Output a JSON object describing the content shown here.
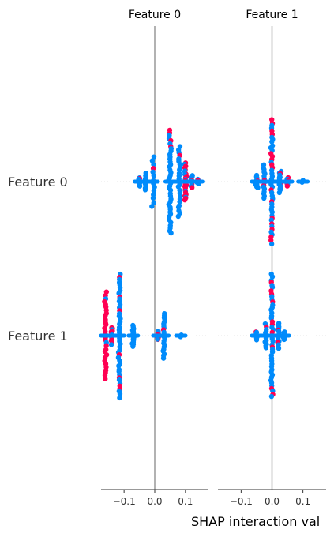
{
  "chart_data": {
    "type": "scatter",
    "title": "",
    "xlabel": "SHAP interaction val",
    "ylabel": "",
    "panels": [
      {
        "title": "Feature 0",
        "xlim": [
          -0.175,
          0.175
        ],
        "ticks": [
          -0.1,
          0.0,
          0.1
        ],
        "tick_labels": [
          "−0.1",
          "0.0",
          "0.1"
        ],
        "rows": [
          {
            "feature": "Feature 0",
            "clusters": [
              {
                "x": -0.03,
                "spread": 0.04,
                "n": 10,
                "low": 0.95
              },
              {
                "x": -0.005,
                "spread": 0.12,
                "n": 14,
                "low": 0.95
              },
              {
                "x": 0.05,
                "spread": 0.25,
                "n": 40,
                "low": 0.95
              },
              {
                "x": 0.08,
                "spread": 0.17,
                "n": 25,
                "low": 0.9
              },
              {
                "x": 0.1,
                "spread": 0.09,
                "n": 26,
                "low": 0.45
              },
              {
                "x": 0.14,
                "spread": 0.01,
                "n": 8,
                "low": 0.85
              },
              {
                "x": -0.05,
                "spread": 0.02,
                "n": 10,
                "low": 0.9
              },
              {
                "x": 0.12,
                "spread": 0.03,
                "n": 12,
                "low": 0.7
              }
            ]
          },
          {
            "feature": "Feature 1",
            "clusters": [
              {
                "x": -0.16,
                "spread": 0.21,
                "n": 30,
                "low": 0.05
              },
              {
                "x": -0.14,
                "spread": 0.04,
                "n": 16,
                "low": 0.4
              },
              {
                "x": -0.115,
                "spread": 0.3,
                "n": 45,
                "low": 0.92
              },
              {
                "x": -0.07,
                "spread": 0.05,
                "n": 18,
                "low": 0.95
              },
              {
                "x": 0.01,
                "spread": 0.02,
                "n": 10,
                "low": 0.5
              },
              {
                "x": 0.03,
                "spread": 0.11,
                "n": 22,
                "low": 0.9
              },
              {
                "x": 0.085,
                "spread": 0.005,
                "n": 3,
                "low": 1.0
              }
            ]
          }
        ]
      },
      {
        "title": "Feature 1",
        "xlim": [
          -0.175,
          0.175
        ],
        "ticks": [
          -0.1,
          0.0,
          0.1
        ],
        "tick_labels": [
          "−0.1",
          "0.0",
          "0.1"
        ],
        "rows": [
          {
            "feature": "Feature 0",
            "clusters": [
              {
                "x": -0.05,
                "spread": 0.03,
                "n": 12,
                "low": 0.95
              },
              {
                "x": -0.025,
                "spread": 0.08,
                "n": 16,
                "low": 0.85
              },
              {
                "x": 0.0,
                "spread": 0.3,
                "n": 45,
                "low": 0.75
              },
              {
                "x": 0.025,
                "spread": 0.05,
                "n": 18,
                "low": 0.7
              },
              {
                "x": 0.05,
                "spread": 0.02,
                "n": 10,
                "low": 0.8
              },
              {
                "x": 0.1,
                "spread": 0.005,
                "n": 3,
                "low": 1.0
              }
            ]
          },
          {
            "feature": "Feature 1",
            "clusters": [
              {
                "x": -0.05,
                "spread": 0.02,
                "n": 8,
                "low": 0.95
              },
              {
                "x": -0.02,
                "spread": 0.06,
                "n": 14,
                "low": 0.9
              },
              {
                "x": 0.0,
                "spread": 0.3,
                "n": 45,
                "low": 0.75
              },
              {
                "x": 0.02,
                "spread": 0.06,
                "n": 16,
                "low": 0.8
              },
              {
                "x": 0.04,
                "spread": 0.02,
                "n": 8,
                "low": 0.9
              }
            ]
          }
        ]
      }
    ],
    "row_labels": [
      "Feature 0",
      "Feature 1"
    ],
    "colors": {
      "low": "#008bfb",
      "high": "#ff0052",
      "zero_line": "#999999",
      "axis": "#333333",
      "row_guide": "#cccccc"
    }
  }
}
